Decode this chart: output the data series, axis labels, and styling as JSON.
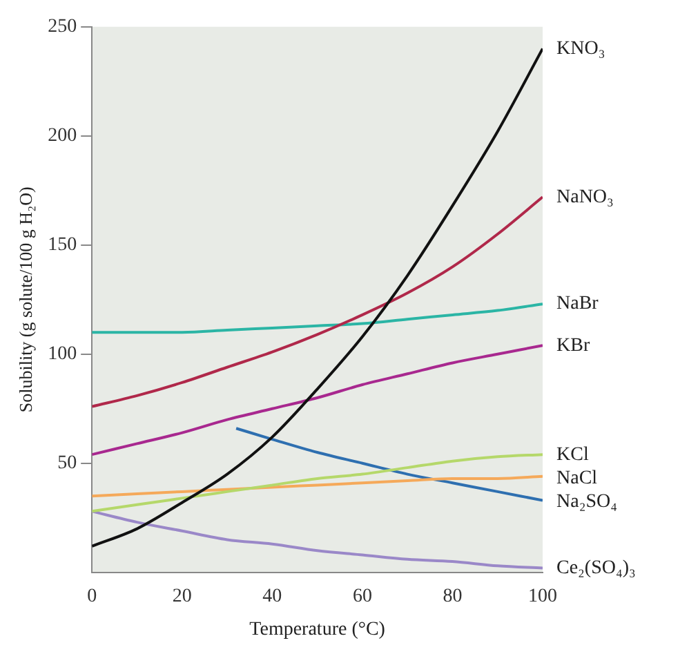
{
  "chart_data": {
    "type": "line",
    "xlabel": "Temperature (°C)",
    "ylabel": "Solubility (g solute/100 g H₂O)",
    "xlim": [
      0,
      100
    ],
    "xticks": [
      0,
      20,
      40,
      60,
      80,
      100
    ],
    "ylim": [
      0,
      250
    ],
    "yticks": [
      50,
      100,
      150,
      200,
      250
    ],
    "grid": false,
    "legend": false,
    "marker": "none",
    "line_style": "solid",
    "x": [
      0,
      10,
      20,
      30,
      40,
      50,
      60,
      70,
      80,
      90,
      100
    ],
    "series": [
      {
        "name": "KNO₃",
        "color": "#111111",
        "values": [
          12,
          20,
          32,
          45,
          62,
          84,
          108,
          136,
          168,
          202,
          240
        ]
      },
      {
        "name": "NaNO₃",
        "color": "#b0284a",
        "values": [
          76,
          81,
          87,
          94,
          101,
          109,
          118,
          128,
          140,
          155,
          172
        ]
      },
      {
        "name": "NaBr",
        "color": "#2bb5a5",
        "values": [
          110,
          110,
          110,
          111,
          112,
          113,
          114,
          116,
          118,
          120,
          123
        ]
      },
      {
        "name": "KBr",
        "color": "#a8288f",
        "values": [
          54,
          59,
          64,
          70,
          75,
          80,
          86,
          91,
          96,
          100,
          104
        ]
      },
      {
        "name": "KCl",
        "color": "#b5d86a",
        "values": [
          28,
          31,
          34,
          37,
          40,
          43,
          45,
          48,
          51,
          53,
          54
        ]
      },
      {
        "name": "NaCl",
        "color": "#f5a95a",
        "values": [
          35,
          36,
          37,
          38,
          39,
          40,
          41,
          42,
          43,
          43,
          44
        ]
      },
      {
        "name": "Na₂SO₄",
        "color": "#2e6fb0",
        "x": [
          32,
          40,
          50,
          60,
          70,
          80,
          90,
          100
        ],
        "values": [
          66,
          61,
          55,
          50,
          45,
          41,
          37,
          33
        ]
      },
      {
        "name": "Ce₂(SO₄)₃",
        "color": "#9a88c8",
        "values": [
          28,
          23,
          19,
          15,
          13,
          10,
          8,
          6,
          5,
          3,
          2
        ]
      }
    ]
  }
}
